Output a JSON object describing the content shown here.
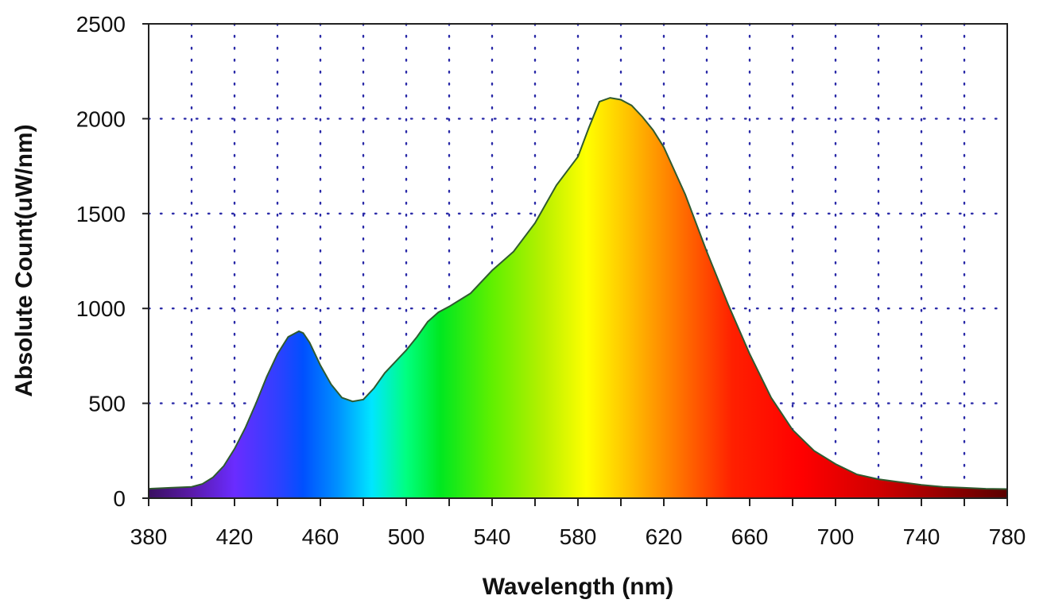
{
  "chart_data": {
    "type": "area",
    "title": "",
    "xlabel": "Wavelength (nm)",
    "ylabel": "Absolute Count(uW/nm)",
    "xlim": [
      380,
      780
    ],
    "ylim": [
      0,
      2500
    ],
    "x_ticks": [
      380,
      420,
      460,
      500,
      540,
      580,
      620,
      660,
      700,
      740,
      780
    ],
    "y_ticks": [
      0,
      500,
      1000,
      1500,
      2000,
      2500
    ],
    "grid": "dotted",
    "fill": "visible-spectrum-gradient",
    "line_color": "#2f5a2f",
    "grid_color": "#2a2aa8",
    "x": [
      380,
      390,
      400,
      405,
      410,
      415,
      420,
      425,
      430,
      435,
      440,
      445,
      450,
      452,
      455,
      460,
      465,
      470,
      475,
      480,
      485,
      490,
      495,
      500,
      505,
      510,
      515,
      520,
      530,
      540,
      550,
      560,
      570,
      580,
      585,
      590,
      595,
      600,
      605,
      610,
      615,
      620,
      630,
      640,
      650,
      660,
      670,
      680,
      690,
      700,
      710,
      720,
      730,
      740,
      750,
      760,
      770,
      780
    ],
    "y": [
      50,
      55,
      60,
      75,
      110,
      170,
      260,
      370,
      500,
      640,
      760,
      850,
      880,
      870,
      820,
      700,
      600,
      530,
      510,
      520,
      580,
      660,
      720,
      780,
      850,
      930,
      980,
      1010,
      1080,
      1200,
      1300,
      1450,
      1650,
      1800,
      1950,
      2090,
      2110,
      2100,
      2070,
      2010,
      1940,
      1850,
      1600,
      1300,
      1020,
      760,
      530,
      360,
      250,
      180,
      125,
      100,
      85,
      70,
      60,
      55,
      50,
      48
    ]
  }
}
